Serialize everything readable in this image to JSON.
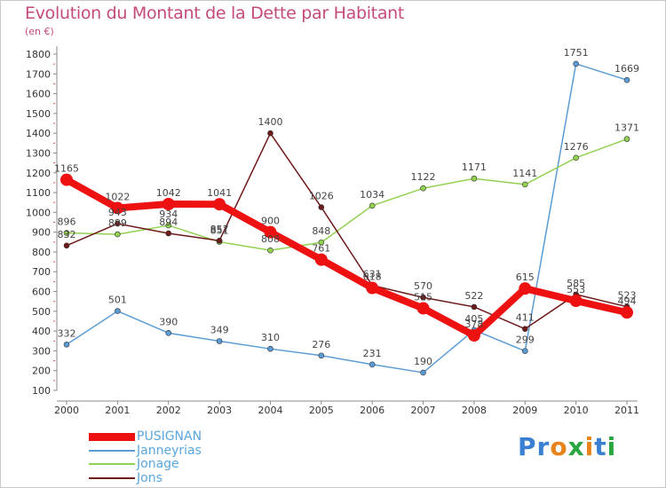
{
  "header": {
    "title": "Evolution du Montant de la Dette par Habitant",
    "unit": "(en €)"
  },
  "logo": {
    "text": "Proxiti",
    "letter_colors": [
      "#3a7fd1",
      "#3a7fd1",
      "#e8821a",
      "#2aa640",
      "#e8821a",
      "#3a7fd1",
      "#2aa640"
    ]
  },
  "colors": {
    "PUSIGNAN": "#ee1111",
    "Janneyrias": "#5b9bd5",
    "Jonage": "#92d050",
    "Jons": "#6e1a1a",
    "title": "#c44a7a",
    "legend_text": "#5aa7de"
  },
  "chart_data": {
    "type": "line",
    "title": "Evolution du Montant de la Dette par Habitant",
    "ylabel": "(en €)",
    "xlabel": "",
    "x": [
      "2000",
      "2001",
      "2002",
      "2003",
      "2004",
      "2005",
      "2006",
      "2007",
      "2008",
      "2009",
      "2010",
      "2011"
    ],
    "ylim": [
      100,
      1800
    ],
    "yticks": [
      100,
      200,
      300,
      400,
      500,
      600,
      700,
      800,
      900,
      1000,
      1100,
      1200,
      1300,
      1400,
      1500,
      1600,
      1700,
      1800
    ],
    "grid": false,
    "legend": "bottom-left",
    "series": [
      {
        "name": "PUSIGNAN",
        "values": [
          1165,
          1022,
          1042,
          1041,
          900,
          761,
          618,
          515,
          378,
          615,
          553,
          494
        ]
      },
      {
        "name": "Janneyrias",
        "values": [
          332,
          501,
          390,
          349,
          310,
          276,
          231,
          190,
          405,
          299,
          1751,
          1669
        ]
      },
      {
        "name": "Jonage",
        "values": [
          896,
          889,
          934,
          851,
          808,
          848,
          1034,
          1122,
          1171,
          1141,
          1276,
          1371
        ]
      },
      {
        "name": "Jons",
        "values": [
          832,
          943,
          894,
          857,
          1400,
          1026,
          631,
          570,
          522,
          411,
          585,
          523
        ]
      }
    ]
  }
}
